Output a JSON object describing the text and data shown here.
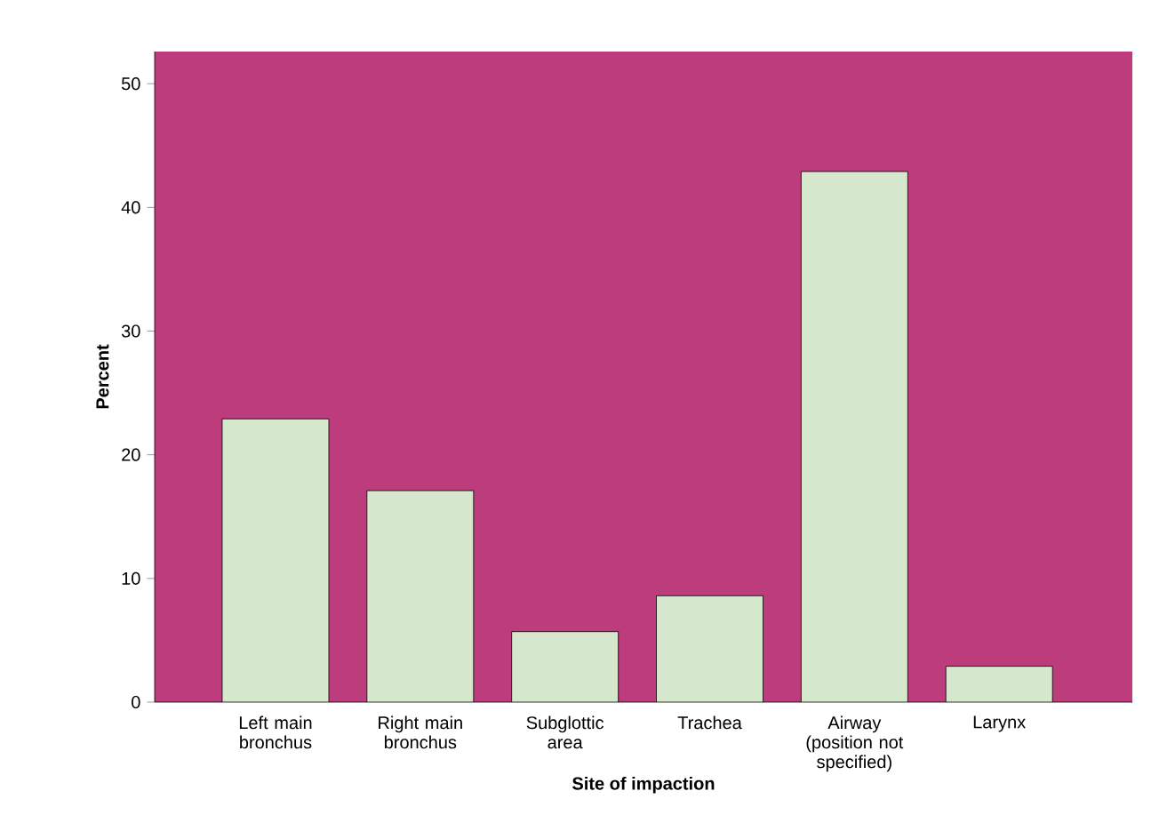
{
  "chart_data": {
    "type": "bar",
    "xlabel": "Site of impaction",
    "ylabel": "Percent",
    "categories": [
      "Left main bronchus",
      "Right main bronchus",
      "Subglottic area",
      "Trachea",
      "Airway (position not specified)",
      "Larynx"
    ],
    "values": [
      22.9,
      17.1,
      5.7,
      8.6,
      42.9,
      2.9
    ],
    "color": "#d5e8cd",
    "ylim": [
      0,
      52.6
    ],
    "yticks": [
      0,
      10,
      20,
      30,
      40,
      50
    ]
  }
}
